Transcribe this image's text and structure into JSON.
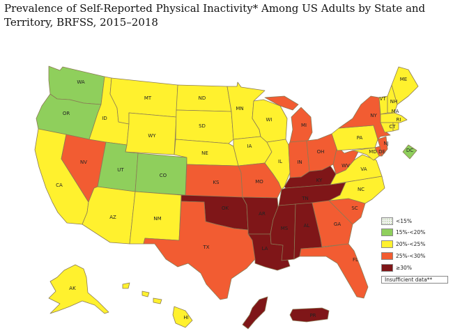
{
  "title": "Prevalence of Self-Reported Physical Inactivity* Among US Adults by State and Territory, BRFSS, 2015–2018",
  "colors": {
    "lt15": "#7ab04c",
    "c15_20": "#8fcf5c",
    "c20_25": "#fff12e",
    "c25_30": "#f25c32",
    "c30": "#7f1618",
    "insufficient": "#ffffff",
    "border": "#8a7a55"
  },
  "legend": [
    {
      "key": "lt15",
      "label": "<15%",
      "pattern": "dots"
    },
    {
      "key": "c15_20",
      "label": "15%-<20%"
    },
    {
      "key": "c20_25",
      "label": "20%-<25%"
    },
    {
      "key": "c25_30",
      "label": "25%-<30%"
    },
    {
      "key": "c30",
      "label": "≥30%"
    },
    {
      "key": "insufficient",
      "label": "Insufficient data**"
    }
  ],
  "states": {
    "WA": "c15_20",
    "OR": "c15_20",
    "CA": "c20_25",
    "NV": "c25_30",
    "ID": "c20_25",
    "MT": "c20_25",
    "WY": "c20_25",
    "UT": "c15_20",
    "AZ": "c20_25",
    "CO": "c15_20",
    "NM": "c20_25",
    "ND": "c20_25",
    "SD": "c20_25",
    "NE": "c20_25",
    "KS": "c25_30",
    "OK": "c30",
    "TX": "c25_30",
    "MN": "c20_25",
    "IA": "c20_25",
    "MO": "c25_30",
    "AR": "c30",
    "LA": "c30",
    "WI": "c20_25",
    "IL": "c20_25",
    "MS": "c30",
    "MI": "c25_30",
    "IN": "c25_30",
    "OH": "c25_30",
    "KY": "c30",
    "TN": "c30",
    "AL": "c30",
    "GA": "c25_30",
    "FL": "c25_30",
    "SC": "c25_30",
    "NC": "c20_25",
    "VA": "c20_25",
    "WV": "c25_30",
    "PA": "c20_25",
    "NY": "c25_30",
    "VT": "c20_25",
    "NH": "c20_25",
    "ME": "c20_25",
    "MA": "c20_25",
    "RI": "c20_25",
    "CT": "c20_25",
    "NJ": "c25_30",
    "DE": "c25_30",
    "MD": "c20_25",
    "DC": "c15_20",
    "AK": "c20_25",
    "HI": "c20_25",
    "PR": "c30",
    "GU": "c30"
  }
}
